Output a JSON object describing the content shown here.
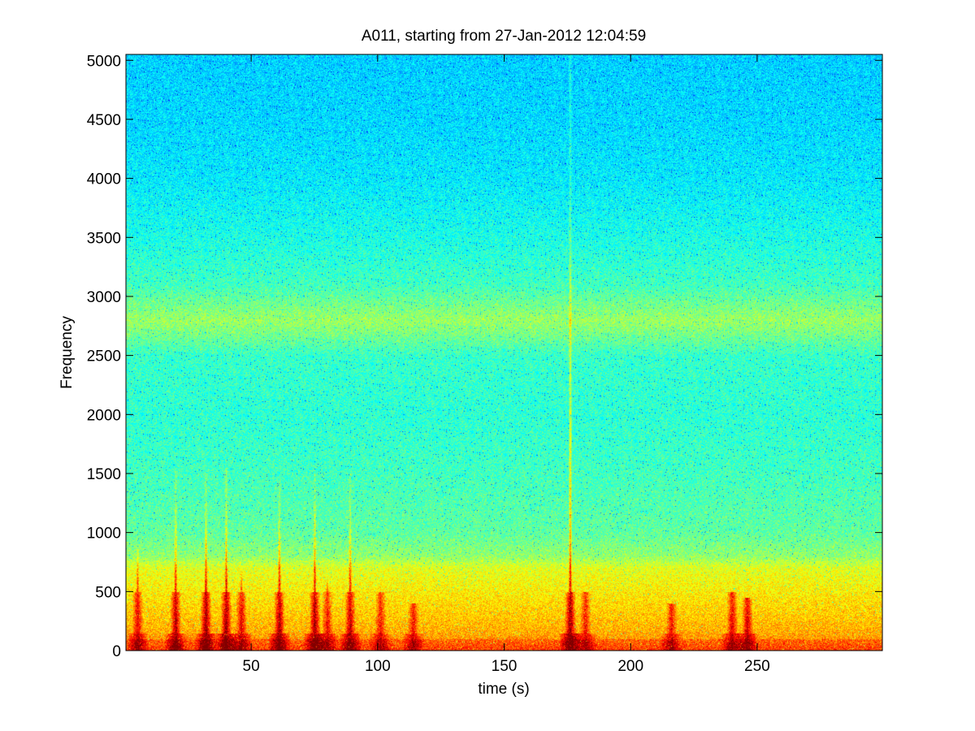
{
  "chart_data": {
    "type": "heatmap",
    "title": "A011, starting from 27-Jan-2012 12:04:59",
    "xlabel": "time (s)",
    "ylabel": "Frequency",
    "xlim": [
      0.5,
      299.5
    ],
    "ylim": [
      0,
      5050
    ],
    "xticks": [
      50,
      100,
      150,
      200,
      250
    ],
    "yticks": [
      0,
      500,
      1000,
      1500,
      2000,
      2500,
      3000,
      3500,
      4000,
      4500,
      5000
    ],
    "colormap": "jet",
    "grid": false,
    "background_profile": {
      "frequency": [
        0,
        150,
        300,
        500,
        700,
        800,
        1000,
        1500,
        2000,
        2500,
        2700,
        2800,
        2900,
        3100,
        3500,
        4000,
        4500,
        5050
      ],
      "level": [
        0.78,
        0.71,
        0.68,
        0.64,
        0.6,
        0.52,
        0.47,
        0.44,
        0.42,
        0.43,
        0.5,
        0.53,
        0.5,
        0.44,
        0.4,
        0.36,
        0.34,
        0.33
      ]
    },
    "bursts": [
      {
        "time": 5,
        "max_frequency": 900,
        "intensity": 0.7
      },
      {
        "time": 20,
        "max_frequency": 1550,
        "intensity": 0.85
      },
      {
        "time": 32,
        "max_frequency": 1500,
        "intensity": 0.95
      },
      {
        "time": 40,
        "max_frequency": 1550,
        "intensity": 0.95
      },
      {
        "time": 46,
        "max_frequency": 700,
        "intensity": 0.7
      },
      {
        "time": 61,
        "max_frequency": 1450,
        "intensity": 0.9
      },
      {
        "time": 75,
        "max_frequency": 1500,
        "intensity": 0.9
      },
      {
        "time": 80,
        "max_frequency": 600,
        "intensity": 0.6
      },
      {
        "time": 89,
        "max_frequency": 1500,
        "intensity": 0.85
      },
      {
        "time": 101,
        "max_frequency": 500,
        "intensity": 0.6
      },
      {
        "time": 114,
        "max_frequency": 400,
        "intensity": 0.6
      },
      {
        "time": 176,
        "max_frequency": 5050,
        "intensity": 1.0
      },
      {
        "time": 182,
        "max_frequency": 500,
        "intensity": 0.6
      },
      {
        "time": 216,
        "max_frequency": 400,
        "intensity": 0.6
      },
      {
        "time": 240,
        "max_frequency": 500,
        "intensity": 0.7
      },
      {
        "time": 246,
        "max_frequency": 450,
        "intensity": 0.75
      }
    ]
  }
}
